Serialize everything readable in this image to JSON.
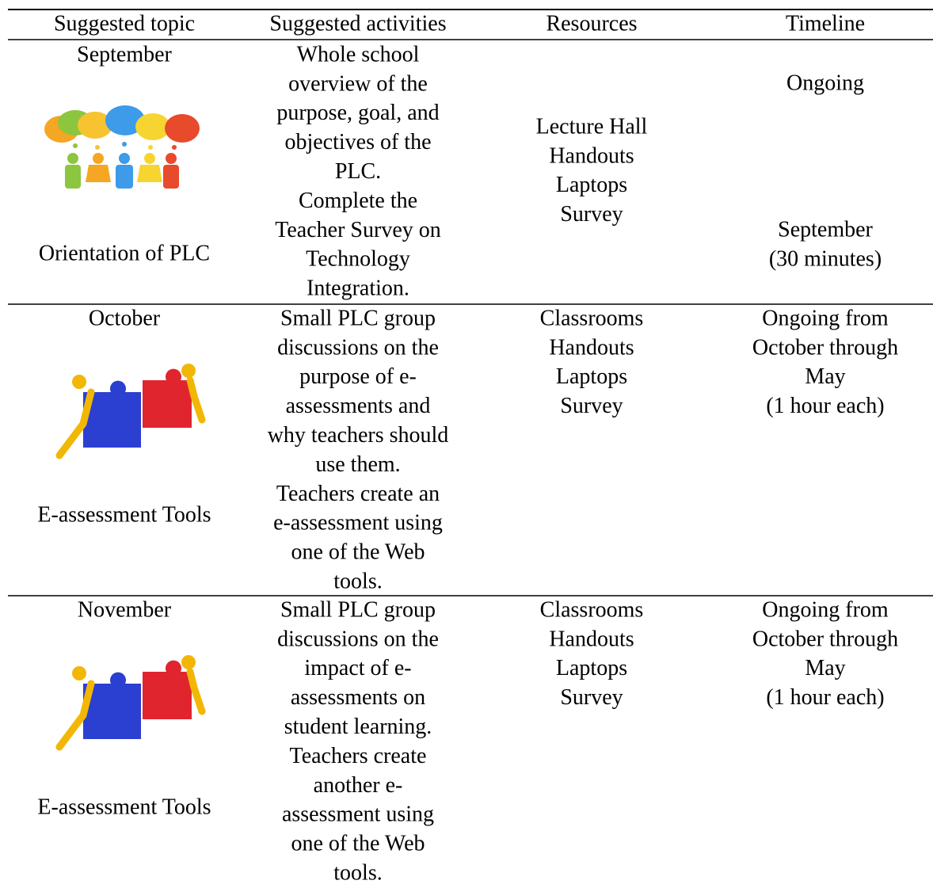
{
  "table": {
    "header": [
      "Suggested topic",
      "Suggested activities",
      "Resources",
      "Timeline"
    ],
    "rows": [
      {
        "month": "September",
        "topic": "Orientation of PLC",
        "activities": [
          "Whole school",
          "overview of the",
          "purpose, goal, and",
          "objectives of the",
          "PLC.",
          "Complete the",
          "Teacher Survey on",
          "Technology",
          "Integration."
        ],
        "resources": [
          "Lecture Hall",
          "Handouts",
          "Laptops",
          "Survey"
        ],
        "timeline": [
          "Ongoing",
          "September",
          "(30 minutes)"
        ]
      },
      {
        "month": "October",
        "topic": "E-assessment Tools",
        "activities": [
          "Small PLC group",
          "discussions on the",
          "purpose of e-",
          "assessments and",
          "why teachers should",
          "use them.",
          "Teachers create an",
          "e-assessment using",
          "one of the Web",
          "tools."
        ],
        "resources": [
          "Classrooms",
          "Handouts",
          "Laptops",
          "Survey"
        ],
        "timeline": [
          "Ongoing from",
          "October through",
          "May",
          "(1 hour each)"
        ]
      },
      {
        "month": "November",
        "topic": "E-assessment Tools",
        "activities": [
          "Small PLC group",
          "discussions on the",
          "impact of e-",
          "assessments on",
          "student learning.",
          "Teachers create",
          "another e-",
          "assessment using",
          "one of the Web",
          "tools."
        ],
        "resources": [
          "Classrooms",
          "Handouts",
          "Laptops",
          "Survey"
        ],
        "timeline": [
          "Ongoing from",
          "October through",
          "May",
          "(1 hour each)"
        ]
      }
    ]
  }
}
